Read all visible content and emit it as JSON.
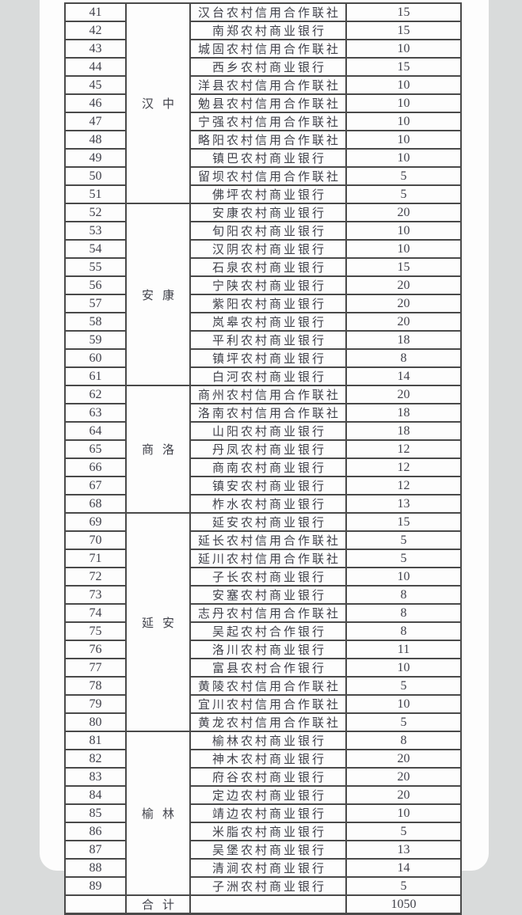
{
  "colors": {
    "background_gray": "#d9dbdb",
    "paper_white": "#fdfdfd",
    "table_border": "#4a4a4a",
    "text": "#40414a"
  },
  "table": {
    "regions": [
      {
        "name": "汉中",
        "rows": [
          {
            "num": "41",
            "org": "汉台农村信用合作联社",
            "value": "15"
          },
          {
            "num": "42",
            "org": "南郑农村商业银行",
            "value": "15"
          },
          {
            "num": "43",
            "org": "城固农村信用合作联社",
            "value": "10"
          },
          {
            "num": "44",
            "org": "西乡农村商业银行",
            "value": "15"
          },
          {
            "num": "45",
            "org": "洋县农村信用合作联社",
            "value": "10"
          },
          {
            "num": "46",
            "org": "勉县农村信用合作联社",
            "value": "10"
          },
          {
            "num": "47",
            "org": "宁强农村信用合作联社",
            "value": "10"
          },
          {
            "num": "48",
            "org": "略阳农村信用合作联社",
            "value": "10"
          },
          {
            "num": "49",
            "org": "镇巴农村商业银行",
            "value": "10"
          },
          {
            "num": "50",
            "org": "留坝农村信用合作联社",
            "value": "5"
          },
          {
            "num": "51",
            "org": "佛坪农村商业银行",
            "value": "5"
          }
        ]
      },
      {
        "name": "安康",
        "rows": [
          {
            "num": "52",
            "org": "安康农村商业银行",
            "value": "20"
          },
          {
            "num": "53",
            "org": "旬阳农村商业银行",
            "value": "10"
          },
          {
            "num": "54",
            "org": "汉阴农村商业银行",
            "value": "10"
          },
          {
            "num": "55",
            "org": "石泉农村商业银行",
            "value": "15"
          },
          {
            "num": "56",
            "org": "宁陕农村商业银行",
            "value": "20"
          },
          {
            "num": "57",
            "org": "紫阳农村商业银行",
            "value": "20"
          },
          {
            "num": "58",
            "org": "岚皋农村商业银行",
            "value": "20"
          },
          {
            "num": "59",
            "org": "平利农村商业银行",
            "value": "18"
          },
          {
            "num": "60",
            "org": "镇坪农村商业银行",
            "value": "8"
          },
          {
            "num": "61",
            "org": "白河农村商业银行",
            "value": "14"
          }
        ]
      },
      {
        "name": "商洛",
        "rows": [
          {
            "num": "62",
            "org": "商州农村信用合作联社",
            "value": "20"
          },
          {
            "num": "63",
            "org": "洛南农村信用合作联社",
            "value": "18"
          },
          {
            "num": "64",
            "org": "山阳农村商业银行",
            "value": "18"
          },
          {
            "num": "65",
            "org": "丹凤农村商业银行",
            "value": "12"
          },
          {
            "num": "66",
            "org": "商南农村商业银行",
            "value": "12"
          },
          {
            "num": "67",
            "org": "镇安农村商业银行",
            "value": "12"
          },
          {
            "num": "68",
            "org": "柞水农村商业银行",
            "value": "13"
          }
        ]
      },
      {
        "name": "延安",
        "rows": [
          {
            "num": "69",
            "org": "延安农村商业银行",
            "value": "15"
          },
          {
            "num": "70",
            "org": "延长农村信用合作联社",
            "value": "5"
          },
          {
            "num": "71",
            "org": "延川农村信用合作联社",
            "value": "5"
          },
          {
            "num": "72",
            "org": "子长农村商业银行",
            "value": "10"
          },
          {
            "num": "73",
            "org": "安塞农村商业银行",
            "value": "8"
          },
          {
            "num": "74",
            "org": "志丹农村信用合作联社",
            "value": "8"
          },
          {
            "num": "75",
            "org": "吴起农村合作银行",
            "value": "8"
          },
          {
            "num": "76",
            "org": "洛川农村商业银行",
            "value": "11"
          },
          {
            "num": "77",
            "org": "富县农村合作银行",
            "value": "10"
          },
          {
            "num": "78",
            "org": "黄陵农村信用合作联社",
            "value": "5"
          },
          {
            "num": "79",
            "org": "宜川农村信用合作联社",
            "value": "10"
          },
          {
            "num": "80",
            "org": "黄龙农村信用合作联社",
            "value": "5"
          }
        ]
      },
      {
        "name": "榆林",
        "rows": [
          {
            "num": "81",
            "org": "榆林农村商业银行",
            "value": "8"
          },
          {
            "num": "82",
            "org": "神木农村商业银行",
            "value": "20"
          },
          {
            "num": "83",
            "org": "府谷农村商业银行",
            "value": "20"
          },
          {
            "num": "84",
            "org": "定边农村商业银行",
            "value": "20"
          },
          {
            "num": "85",
            "org": "靖边农村商业银行",
            "value": "10"
          },
          {
            "num": "86",
            "org": "米脂农村商业银行",
            "value": "5"
          },
          {
            "num": "87",
            "org": "吴堡农村商业银行",
            "value": "13"
          },
          {
            "num": "88",
            "org": "清涧农村商业银行",
            "value": "14"
          },
          {
            "num": "89",
            "org": "子洲农村商业银行",
            "value": "5"
          }
        ]
      }
    ],
    "total_row": {
      "label": "合计",
      "value": "1050"
    }
  }
}
